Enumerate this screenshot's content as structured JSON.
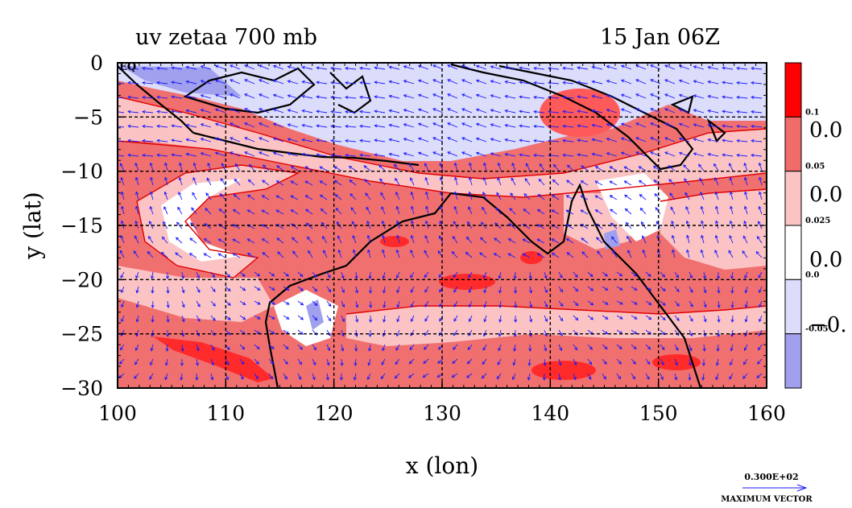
{
  "chart_data": {
    "type": "heatmap",
    "title": "uv zetaa 700 mb",
    "time_label": "15 Jan 06Z",
    "xlabel": "x (lon)",
    "ylabel": "y (lat)",
    "xlim": [
      100,
      160
    ],
    "ylim": [
      -30,
      0
    ],
    "x_ticks": [
      "100",
      "110",
      "120",
      "130",
      "140",
      "150",
      "160"
    ],
    "y_ticks": [
      "0",
      "−5",
      "−10",
      "−15",
      "−20",
      "−25",
      "−30"
    ],
    "y_tick_values": [
      0,
      -5,
      -10,
      -15,
      -20,
      -25,
      -30
    ],
    "x_tick_values": [
      100,
      110,
      120,
      130,
      140,
      150,
      160
    ],
    "grid": true,
    "eq_label": "EQ",
    "colorbar": {
      "bands": [
        {
          "color": "#ff0000"
        },
        {
          "color": "#f26b6b"
        },
        {
          "color": "#fbc3c3"
        },
        {
          "color": "#ffffff"
        },
        {
          "color": "#dcdcfb"
        },
        {
          "color": "#a0a0ee"
        }
      ],
      "levels": [
        "0.1",
        "0.05",
        "0.025",
        "0.0",
        "-0.05"
      ],
      "side_labels": [
        "0.0",
        "0.0",
        "0.0",
        "−0."
      ]
    },
    "vector_key": {
      "value": "0.300E+02",
      "label": "MAXIMUM VECTOR",
      "color": "#0000ff"
    }
  }
}
